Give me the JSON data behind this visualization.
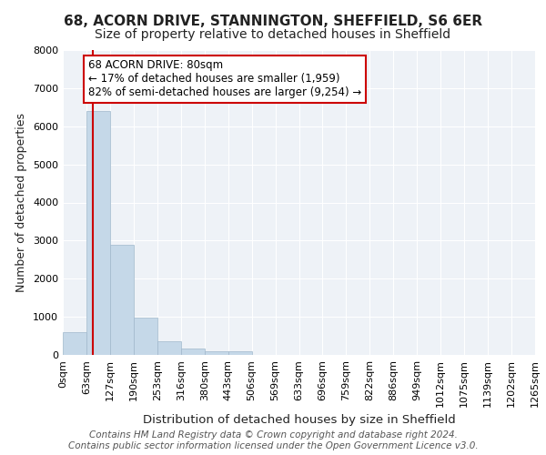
{
  "title1": "68, ACORN DRIVE, STANNINGTON, SHEFFIELD, S6 6ER",
  "title2": "Size of property relative to detached houses in Sheffield",
  "xlabel": "Distribution of detached houses by size in Sheffield",
  "ylabel": "Number of detached properties",
  "footnote1": "Contains HM Land Registry data © Crown copyright and database right 2024.",
  "footnote2": "Contains public sector information licensed under the Open Government Licence v3.0.",
  "bin_labels": [
    "0sqm",
    "63sqm",
    "127sqm",
    "190sqm",
    "253sqm",
    "316sqm",
    "380sqm",
    "443sqm",
    "506sqm",
    "569sqm",
    "633sqm",
    "696sqm",
    "759sqm",
    "822sqm",
    "886sqm",
    "949sqm",
    "1012sqm",
    "1075sqm",
    "1139sqm",
    "1202sqm",
    "1265sqm"
  ],
  "bar_values": [
    600,
    6400,
    2900,
    980,
    350,
    170,
    100,
    100,
    0,
    0,
    0,
    0,
    0,
    0,
    0,
    0,
    0,
    0,
    0,
    0
  ],
  "bar_color": "#c5d8e8",
  "bar_edge_color": "#a0b8cc",
  "vline_x": 1.265625,
  "vline_color": "#cc0000",
  "annotation_text": "68 ACORN DRIVE: 80sqm\n← 17% of detached houses are smaller (1,959)\n82% of semi-detached houses are larger (9,254) →",
  "annotation_box_color": "#cc0000",
  "ylim": [
    0,
    8000
  ],
  "background_color": "#eef2f7",
  "grid_color": "#ffffff",
  "title_fontsize": 11,
  "subtitle_fontsize": 10,
  "axis_label_fontsize": 9,
  "tick_fontsize": 8,
  "annotation_fontsize": 8.5,
  "footnote_fontsize": 7.5
}
